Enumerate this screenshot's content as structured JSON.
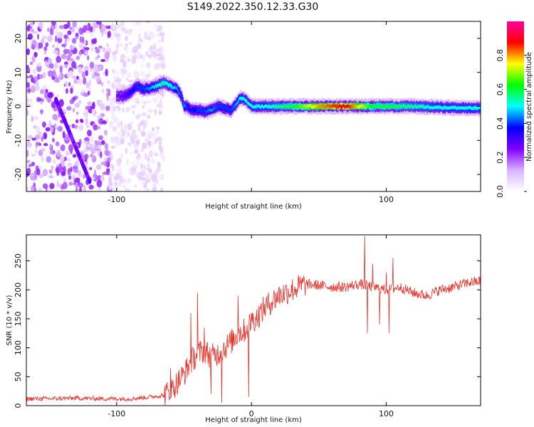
{
  "title": "S149.2022.350.12.33.G30",
  "chart_data": [
    {
      "type": "heatmap",
      "panel": "top",
      "xlabel": "Height of straight line (km)",
      "ylabel": "Frequency (Hz)",
      "xlim": [
        -167,
        170
      ],
      "ylim": [
        -25,
        25
      ],
      "x_ticks": [
        -100,
        0,
        100
      ],
      "x_tick_labels": [
        "-100",
        "",
        "100"
      ],
      "y_ticks": [
        -20,
        -10,
        0,
        10,
        20
      ],
      "y_tick_labels": [
        "-20",
        "-10",
        "0",
        "10",
        "20"
      ],
      "colorbar": {
        "label": "Normalized spectral amplitude",
        "range": [
          0,
          1
        ],
        "ticks": [
          0.0,
          0.2,
          0.4,
          0.6,
          0.8
        ],
        "tick_labels": [
          "0.0",
          "0.2",
          "0.4",
          "0.6",
          "0.8"
        ],
        "colors": [
          "#ffffff",
          "#d9b3ff",
          "#8000ff",
          "#0000ff",
          "#00ffff",
          "#00ff00",
          "#ffff00",
          "#ff0000",
          "#ff00a0"
        ]
      },
      "ridge": {
        "x": [
          -100,
          -95,
          -90,
          -85,
          -80,
          -75,
          -70,
          -65,
          -60,
          -55,
          -52,
          -50,
          -48,
          -45,
          -40,
          -35,
          -30,
          -25,
          -20,
          -15,
          -12,
          -8,
          -5,
          0,
          5,
          10,
          20,
          30,
          50,
          70,
          80,
          90,
          100,
          120,
          140,
          160,
          170
        ],
        "y": [
          3,
          3,
          4,
          6,
          5,
          5.5,
          6,
          7,
          6,
          5,
          3,
          0,
          0,
          -1,
          -1,
          -1.5,
          -1,
          0,
          -0.5,
          -1,
          0.5,
          2.5,
          2,
          0,
          0,
          0,
          0,
          0,
          0,
          0,
          0,
          0,
          0,
          0,
          -0.3,
          -0.5,
          -0.5
        ],
        "amplitude": [
          0.25,
          0.3,
          0.35,
          0.4,
          0.4,
          0.45,
          0.5,
          0.55,
          0.5,
          0.45,
          0.4,
          0.45,
          0.4,
          0.35,
          0.4,
          0.4,
          0.45,
          0.4,
          0.4,
          0.4,
          0.45,
          0.5,
          0.5,
          0.5,
          0.5,
          0.5,
          0.55,
          0.6,
          0.8,
          0.9,
          0.75,
          0.6,
          0.6,
          0.55,
          0.5,
          0.5,
          0.5
        ]
      },
      "noise_region_x": [
        -167,
        -65
      ]
    },
    {
      "type": "line",
      "panel": "bottom",
      "xlabel": "Height of straight line (km)",
      "ylabel": "SNR (10 * v/v)",
      "xlim": [
        -167,
        170
      ],
      "ylim": [
        0,
        295
      ],
      "x_ticks": [
        -100,
        0,
        100
      ],
      "x_tick_labels": [
        "-100",
        "0",
        "100"
      ],
      "y_ticks": [
        0,
        50,
        100,
        150,
        200,
        250
      ],
      "y_tick_labels": [
        "0",
        "50",
        "100",
        "150",
        "200",
        "250"
      ],
      "color": "#e8342c",
      "x": [
        -167,
        -150,
        -130,
        -110,
        -90,
        -75,
        -65,
        -60,
        -55,
        -50,
        -45,
        -40,
        -35,
        -30,
        -25,
        -20,
        -15,
        -10,
        -5,
        0,
        5,
        10,
        15,
        20,
        25,
        30,
        35,
        40,
        50,
        60,
        70,
        80,
        90,
        100,
        110,
        120,
        130,
        140,
        150,
        160,
        170
      ],
      "values": [
        12,
        12,
        13,
        12,
        12,
        15,
        18,
        25,
        40,
        55,
        75,
        90,
        95,
        85,
        90,
        100,
        110,
        125,
        130,
        145,
        155,
        170,
        180,
        190,
        195,
        200,
        205,
        210,
        208,
        205,
        205,
        210,
        205,
        200,
        205,
        195,
        190,
        200,
        205,
        212,
        215
      ],
      "spikes": [
        {
          "x": -60,
          "value": 65
        },
        {
          "x": -45,
          "value": 160
        },
        {
          "x": -40,
          "value": 195
        },
        {
          "x": -35,
          "value": 135
        },
        {
          "x": -30,
          "value": 20
        },
        {
          "x": -22,
          "value": 5
        },
        {
          "x": -10,
          "value": 190
        },
        {
          "x": -2,
          "value": 15
        },
        {
          "x": 0,
          "value": 160
        },
        {
          "x": 80,
          "value": 215
        },
        {
          "x": 84,
          "value": 293
        },
        {
          "x": 86,
          "value": 125
        },
        {
          "x": 90,
          "value": 245
        },
        {
          "x": 95,
          "value": 140
        },
        {
          "x": 100,
          "value": 230
        },
        {
          "x": 102,
          "value": 125
        },
        {
          "x": 105,
          "value": 255
        }
      ]
    }
  ]
}
